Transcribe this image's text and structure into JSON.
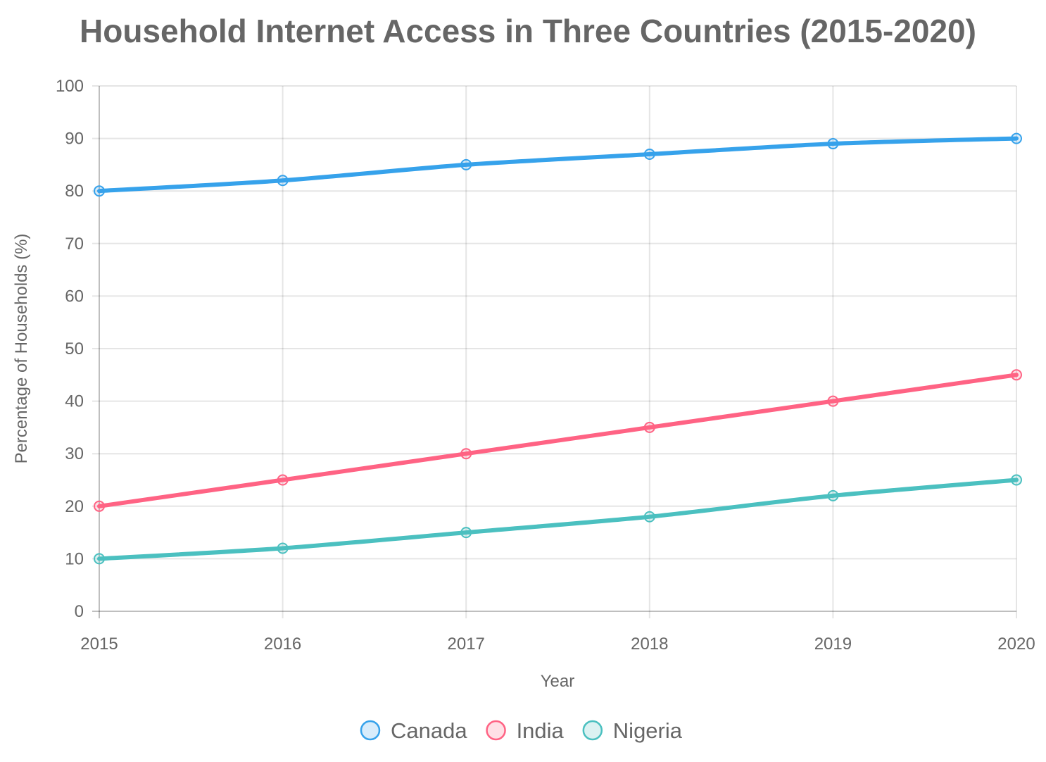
{
  "chart_data": {
    "type": "line",
    "title": "Household Internet Access in Three Countries (2015-2020)",
    "xlabel": "Year",
    "ylabel": "Percentage of Households (%)",
    "x": [
      "2015",
      "2016",
      "2017",
      "2018",
      "2019",
      "2020"
    ],
    "ylim": [
      0,
      100
    ],
    "yticks": [
      0,
      10,
      20,
      30,
      40,
      50,
      60,
      70,
      80,
      90,
      100
    ],
    "grid": true,
    "legend_position": "bottom",
    "series": [
      {
        "name": "Canada",
        "values": [
          80,
          82,
          85,
          87,
          89,
          90
        ],
        "color": "#36a2eb",
        "fill": "rgba(54,162,235,0.2)"
      },
      {
        "name": "India",
        "values": [
          20,
          25,
          30,
          35,
          40,
          45
        ],
        "color": "#ff6384",
        "fill": "rgba(255,99,132,0.2)"
      },
      {
        "name": "Nigeria",
        "values": [
          10,
          12,
          15,
          18,
          22,
          25
        ],
        "color": "#4bc0c0",
        "fill": "rgba(75,192,192,0.2)"
      }
    ]
  }
}
